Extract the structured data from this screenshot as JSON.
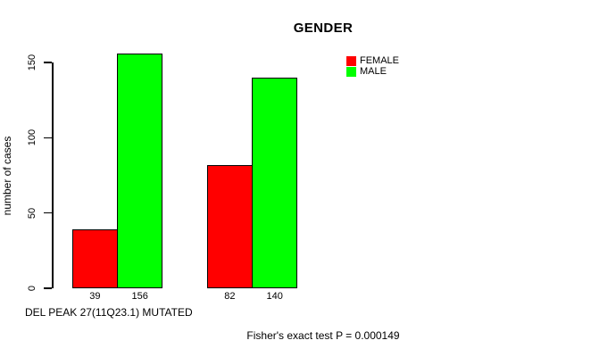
{
  "title": "GENDER",
  "y_axis": {
    "label": "number of cases",
    "tick_labels": [
      "0",
      "50",
      "100",
      "150"
    ]
  },
  "x_axis": {
    "label": "DEL PEAK 27(11Q23.1) MUTATED"
  },
  "legend": {
    "items": [
      {
        "label": "FEMALE",
        "color": "#ff0000"
      },
      {
        "label": "MALE",
        "color": "#00ff00"
      }
    ]
  },
  "footnote": "Fisher's exact test P = 0.000149",
  "colors": {
    "female": "#ff0000",
    "male": "#00ff00",
    "axis": "#000000",
    "background": "#ffffff"
  },
  "chart_data": {
    "type": "bar",
    "title": "GENDER",
    "xlabel": "DEL PEAK 27(11Q23.1) MUTATED",
    "ylabel": "number of cases",
    "ylim": [
      0,
      150
    ],
    "yticks": [
      0,
      50,
      100,
      150
    ],
    "grid": false,
    "legend_position": "top-right",
    "categories": [
      "",
      ""
    ],
    "series": [
      {
        "name": "FEMALE",
        "color": "#ff0000",
        "values": [
          39,
          82
        ]
      },
      {
        "name": "MALE",
        "color": "#00ff00",
        "values": [
          156,
          140
        ]
      }
    ],
    "bar_value_labels": [
      [
        "39",
        "156"
      ],
      [
        "82",
        "140"
      ]
    ],
    "annotation": "Fisher's exact test P = 0.000149"
  }
}
